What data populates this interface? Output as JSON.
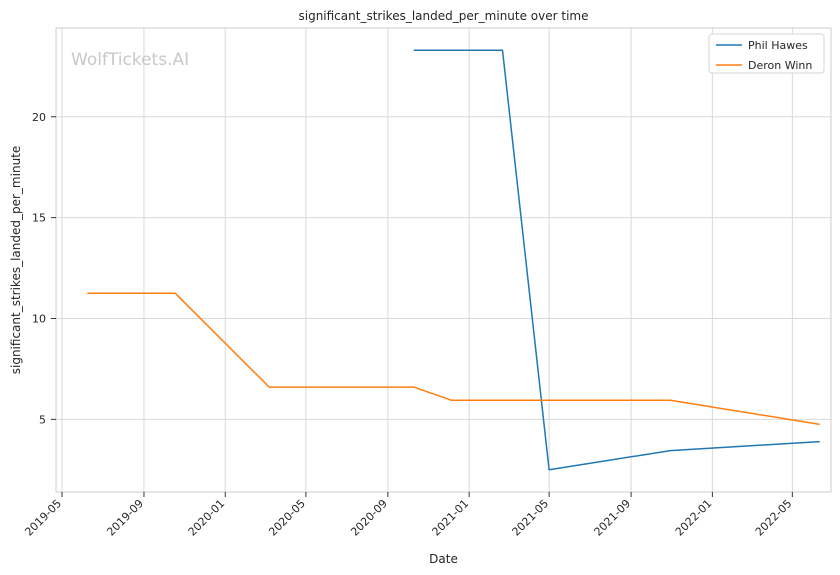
{
  "chart_data": {
    "type": "line",
    "title": "significant_strikes_landed_per_minute over time",
    "xlabel": "Date",
    "ylabel": "significant_strikes_landed_per_minute",
    "watermark": "WolfTickets.AI",
    "grid": true,
    "legend_position": "top-right",
    "x_ticks": [
      "2019-05",
      "2019-09",
      "2020-01",
      "2020-05",
      "2020-09",
      "2021-01",
      "2021-05",
      "2021-09",
      "2022-01",
      "2022-05"
    ],
    "y_ticks": [
      5,
      10,
      15,
      20
    ],
    "ylim": [
      1.4,
      24.4
    ],
    "xlim": [
      "2019-04-22",
      "2022-06-28"
    ],
    "series": [
      {
        "name": "Phil Hawes",
        "color": "#1f77b4",
        "points": [
          {
            "x": "2020-10-10",
            "y": 23.3
          },
          {
            "x": "2021-02-20",
            "y": 23.3
          },
          {
            "x": "2021-05-01",
            "y": 2.5
          },
          {
            "x": "2021-10-30",
            "y": 3.45
          },
          {
            "x": "2022-06-11",
            "y": 3.9
          }
        ]
      },
      {
        "name": "Deron Winn",
        "color": "#ff7f0e",
        "points": [
          {
            "x": "2019-06-08",
            "y": 11.25
          },
          {
            "x": "2019-10-18",
            "y": 11.25
          },
          {
            "x": "2020-03-07",
            "y": 6.6
          },
          {
            "x": "2020-10-10",
            "y": 6.6
          },
          {
            "x": "2020-12-05",
            "y": 5.95
          },
          {
            "x": "2021-10-30",
            "y": 5.95
          },
          {
            "x": "2022-06-11",
            "y": 4.75
          }
        ]
      }
    ]
  }
}
